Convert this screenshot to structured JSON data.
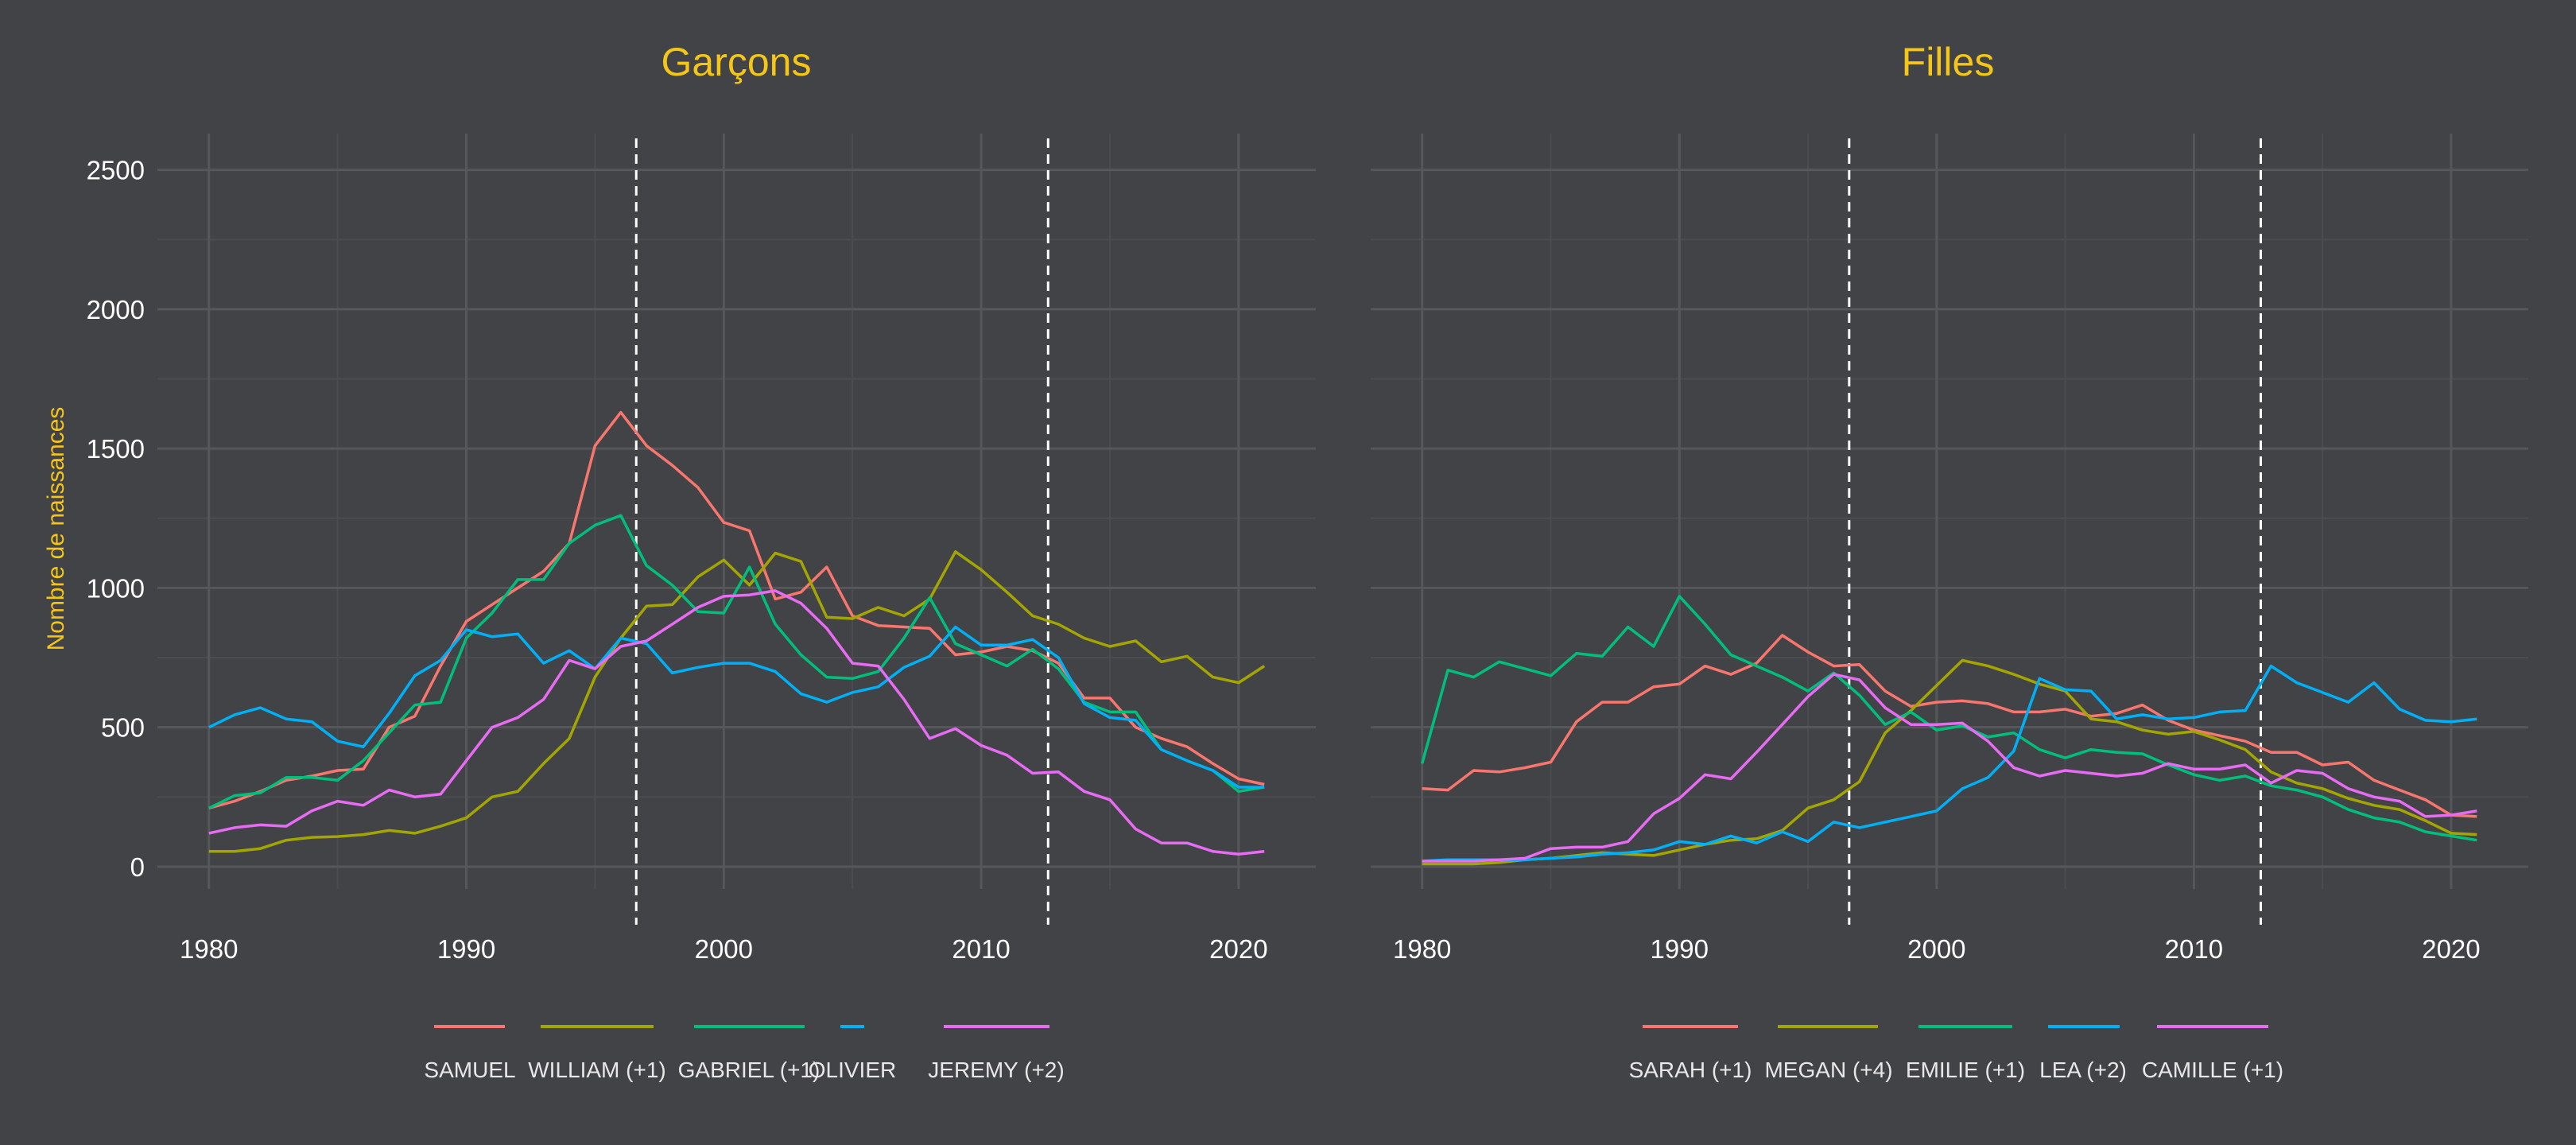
{
  "colors": {
    "background": "#424346",
    "title": "#f5c518",
    "axis_text": "#ffffff",
    "legend_text": "#e8e8e8",
    "grid_major": "#56575a",
    "grid_minor": "#4b4c4f",
    "reference_line": "#ffffff"
  },
  "ylabel": "Nombre de naissances",
  "chart_data": [
    {
      "type": "line",
      "title": "Garçons",
      "xlabel": "",
      "ylabel": "Nombre de naissances",
      "xlim": [
        1978,
        2023
      ],
      "ylim": [
        -80,
        2630
      ],
      "x_ticks": [
        1980,
        1990,
        2000,
        2010,
        2020
      ],
      "y_ticks": [
        0,
        500,
        1000,
        1500,
        2000,
        2500
      ],
      "reference_lines_x": [
        1996.6,
        2012.6
      ],
      "grid": true,
      "legend_position": "bottom",
      "x": [
        1980,
        1981,
        1982,
        1983,
        1984,
        1985,
        1986,
        1987,
        1988,
        1989,
        1990,
        1991,
        1992,
        1993,
        1994,
        1995,
        1996,
        1997,
        1998,
        1999,
        2000,
        2001,
        2002,
        2003,
        2004,
        2005,
        2006,
        2007,
        2008,
        2009,
        2010,
        2011,
        2012,
        2013,
        2014,
        2015,
        2016,
        2017,
        2018,
        2019,
        2020,
        2021
      ],
      "series": [
        {
          "name": "SAMUEL",
          "color": "#f8766d",
          "values": [
            210,
            235,
            270,
            310,
            325,
            345,
            350,
            500,
            540,
            720,
            880,
            940,
            1000,
            1060,
            1160,
            1510,
            1630,
            1510,
            1440,
            1360,
            1235,
            1205,
            960,
            985,
            1075,
            900,
            865,
            860,
            855,
            760,
            770,
            790,
            775,
            730,
            605,
            605,
            500,
            460,
            430,
            370,
            315,
            295
          ]
        },
        {
          "name": "WILLIAM (+1)",
          "color": "#a3a500",
          "values": [
            55,
            55,
            65,
            95,
            105,
            108,
            115,
            130,
            120,
            145,
            175,
            250,
            270,
            370,
            460,
            680,
            820,
            935,
            940,
            1040,
            1100,
            1010,
            1125,
            1095,
            895,
            890,
            930,
            900,
            960,
            1130,
            1065,
            985,
            900,
            870,
            820,
            790,
            810,
            735,
            755,
            680,
            660,
            720
          ]
        },
        {
          "name": "GABRIEL (+1)",
          "color": "#00bf7d",
          "values": [
            210,
            255,
            265,
            320,
            320,
            310,
            380,
            480,
            580,
            590,
            820,
            910,
            1030,
            1030,
            1160,
            1225,
            1260,
            1080,
            1010,
            915,
            910,
            1075,
            870,
            760,
            680,
            675,
            700,
            820,
            965,
            800,
            760,
            720,
            780,
            710,
            590,
            555,
            555,
            420,
            380,
            345,
            270,
            285
          ]
        },
        {
          "name": "OLIVIER",
          "color": "#00b0f6",
          "values": [
            500,
            545,
            570,
            530,
            520,
            450,
            430,
            550,
            685,
            740,
            850,
            825,
            835,
            730,
            775,
            710,
            820,
            800,
            695,
            715,
            730,
            730,
            700,
            620,
            590,
            625,
            645,
            715,
            755,
            860,
            795,
            795,
            815,
            750,
            585,
            535,
            525,
            420,
            380,
            345,
            285,
            285
          ]
        },
        {
          "name": "JEREMY (+2)",
          "color": "#e76bf3",
          "values": [
            120,
            140,
            150,
            145,
            200,
            235,
            220,
            275,
            250,
            260,
            380,
            500,
            535,
            600,
            740,
            710,
            790,
            810,
            870,
            930,
            970,
            975,
            990,
            945,
            855,
            730,
            720,
            600,
            460,
            495,
            435,
            400,
            335,
            340,
            270,
            240,
            135,
            85,
            85,
            55,
            45,
            55
          ]
        }
      ]
    },
    {
      "type": "line",
      "title": "Filles",
      "xlabel": "",
      "ylabel": "",
      "xlim": [
        1978,
        2023
      ],
      "ylim": [
        -80,
        2630
      ],
      "x_ticks": [
        1980,
        1990,
        2000,
        2010,
        2020
      ],
      "y_ticks": [
        0,
        500,
        1000,
        1500,
        2000,
        2500
      ],
      "reference_lines_x": [
        1996.6,
        2012.6
      ],
      "grid": true,
      "legend_position": "bottom",
      "x": [
        1980,
        1981,
        1982,
        1983,
        1984,
        1985,
        1986,
        1987,
        1988,
        1989,
        1990,
        1991,
        1992,
        1993,
        1994,
        1995,
        1996,
        1997,
        1998,
        1999,
        2000,
        2001,
        2002,
        2003,
        2004,
        2005,
        2006,
        2007,
        2008,
        2009,
        2010,
        2011,
        2012,
        2013,
        2014,
        2015,
        2016,
        2017,
        2018,
        2019,
        2020,
        2021
      ],
      "series": [
        {
          "name": "SARAH (+1)",
          "color": "#f8766d",
          "values": [
            280,
            275,
            345,
            340,
            355,
            375,
            520,
            590,
            590,
            645,
            655,
            720,
            690,
            730,
            830,
            770,
            720,
            725,
            630,
            575,
            590,
            595,
            585,
            555,
            555,
            565,
            540,
            550,
            580,
            525,
            490,
            470,
            450,
            410,
            410,
            365,
            375,
            310,
            275,
            240,
            185,
            180
          ]
        },
        {
          "name": "MEGAN (+4)",
          "color": "#a3a500",
          "values": [
            10,
            10,
            10,
            15,
            25,
            30,
            40,
            50,
            45,
            40,
            60,
            80,
            95,
            100,
            130,
            210,
            240,
            305,
            480,
            560,
            650,
            740,
            720,
            690,
            655,
            630,
            530,
            520,
            490,
            475,
            485,
            455,
            420,
            340,
            300,
            280,
            245,
            220,
            205,
            165,
            120,
            115
          ]
        },
        {
          "name": "EMILIE (+1)",
          "color": "#00bf7d",
          "values": [
            370,
            705,
            680,
            735,
            710,
            685,
            765,
            755,
            860,
            790,
            970,
            870,
            760,
            720,
            680,
            630,
            695,
            615,
            510,
            555,
            490,
            505,
            465,
            480,
            420,
            390,
            420,
            410,
            405,
            365,
            330,
            310,
            325,
            290,
            275,
            250,
            205,
            175,
            160,
            125,
            110,
            95
          ]
        },
        {
          "name": "LEA (+2)",
          "color": "#00b0f6",
          "values": [
            20,
            25,
            25,
            25,
            25,
            30,
            35,
            45,
            50,
            60,
            90,
            80,
            110,
            85,
            125,
            90,
            160,
            140,
            160,
            180,
            200,
            280,
            320,
            415,
            675,
            635,
            630,
            530,
            545,
            530,
            535,
            555,
            560,
            720,
            660,
            625,
            590,
            660,
            565,
            525,
            520,
            530
          ]
        },
        {
          "name": "CAMILLE (+1)",
          "color": "#e76bf3",
          "values": [
            20,
            20,
            20,
            25,
            30,
            65,
            70,
            70,
            90,
            190,
            245,
            330,
            315,
            410,
            510,
            610,
            690,
            670,
            570,
            510,
            510,
            515,
            450,
            355,
            325,
            345,
            335,
            325,
            335,
            370,
            350,
            350,
            365,
            300,
            345,
            335,
            280,
            250,
            235,
            180,
            185,
            200
          ]
        }
      ]
    }
  ]
}
